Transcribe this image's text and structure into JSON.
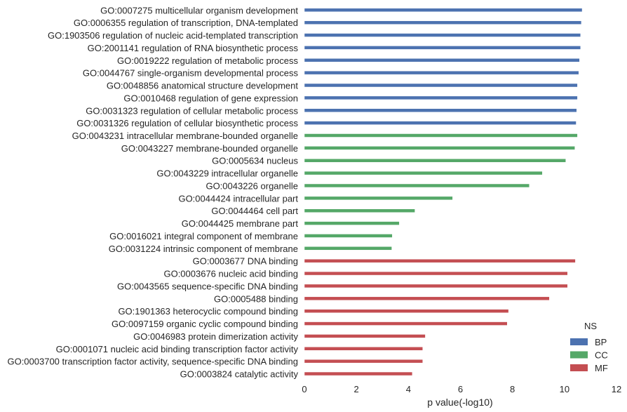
{
  "chart_data": {
    "type": "bar",
    "orientation": "horizontal",
    "title": "",
    "xlabel": "p value(-log10)",
    "ylabel": "",
    "xlim": [
      0,
      12
    ],
    "xticks": [
      0,
      2,
      4,
      6,
      8,
      10,
      12
    ],
    "grid": false,
    "legend": {
      "title": "NS",
      "position": "bottom-right",
      "entries": [
        {
          "name": "BP",
          "color": "#4c72b0"
        },
        {
          "name": "CC",
          "color": "#55a868"
        },
        {
          "name": "MF",
          "color": "#c44e52"
        }
      ]
    },
    "bars": [
      {
        "label": "GO:0007275 multicellular organism development",
        "value": 10.68,
        "ns": "BP"
      },
      {
        "label": "GO:0006355 regulation of transcription, DNA-templated",
        "value": 10.65,
        "ns": "BP"
      },
      {
        "label": "GO:1903506 regulation of nucleic acid-templated transcription",
        "value": 10.62,
        "ns": "BP"
      },
      {
        "label": "GO:2001141 regulation of RNA biosynthetic process",
        "value": 10.62,
        "ns": "BP"
      },
      {
        "label": "GO:0019222 regulation of metabolic process",
        "value": 10.58,
        "ns": "BP"
      },
      {
        "label": "GO:0044767 single-organism developmental process",
        "value": 10.55,
        "ns": "BP"
      },
      {
        "label": "GO:0048856 anatomical structure development",
        "value": 10.5,
        "ns": "BP"
      },
      {
        "label": "GO:0010468 regulation of gene expression",
        "value": 10.5,
        "ns": "BP"
      },
      {
        "label": "GO:0031323 regulation of cellular metabolic process",
        "value": 10.47,
        "ns": "BP"
      },
      {
        "label": "GO:0031326 regulation of cellular biosynthetic process",
        "value": 10.45,
        "ns": "BP"
      },
      {
        "label": "GO:0043231 intracellular membrane-bounded organelle",
        "value": 10.5,
        "ns": "CC"
      },
      {
        "label": "GO:0043227 membrane-bounded organelle",
        "value": 10.4,
        "ns": "CC"
      },
      {
        "label": "GO:0005634 nucleus",
        "value": 10.05,
        "ns": "CC"
      },
      {
        "label": "GO:0043229 intracellular organelle",
        "value": 9.15,
        "ns": "CC"
      },
      {
        "label": "GO:0043226 organelle",
        "value": 8.65,
        "ns": "CC"
      },
      {
        "label": "GO:0044424 intracellular part",
        "value": 5.7,
        "ns": "CC"
      },
      {
        "label": "GO:0044464 cell part",
        "value": 4.25,
        "ns": "CC"
      },
      {
        "label": "GO:0044425 membrane part",
        "value": 3.65,
        "ns": "CC"
      },
      {
        "label": "GO:0016021 integral component of membrane",
        "value": 3.38,
        "ns": "CC"
      },
      {
        "label": "GO:0031224 intrinsic component of membrane",
        "value": 3.36,
        "ns": "CC"
      },
      {
        "label": "GO:0003677 DNA binding",
        "value": 10.42,
        "ns": "MF"
      },
      {
        "label": "GO:0003676 nucleic acid binding",
        "value": 10.12,
        "ns": "MF"
      },
      {
        "label": "GO:0043565 sequence-specific DNA binding",
        "value": 10.12,
        "ns": "MF"
      },
      {
        "label": "GO:0005488 binding",
        "value": 9.42,
        "ns": "MF"
      },
      {
        "label": "GO:1901363 heterocyclic compound binding",
        "value": 7.85,
        "ns": "MF"
      },
      {
        "label": "GO:0097159 organic cyclic compound binding",
        "value": 7.8,
        "ns": "MF"
      },
      {
        "label": "GO:0046983 protein dimerization activity",
        "value": 4.65,
        "ns": "MF"
      },
      {
        "label": "GO:0001071 nucleic acid binding transcription factor activity",
        "value": 4.55,
        "ns": "MF"
      },
      {
        "label": "GO:0003700 transcription factor activity, sequence-specific DNA binding",
        "value": 4.55,
        "ns": "MF"
      },
      {
        "label": "GO:0003824 catalytic activity",
        "value": 4.15,
        "ns": "MF"
      }
    ]
  }
}
